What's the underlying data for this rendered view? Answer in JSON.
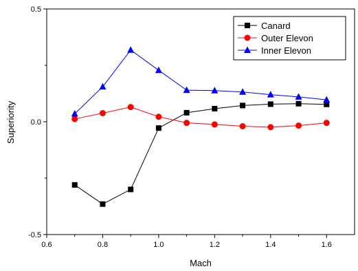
{
  "chart_data": {
    "type": "line",
    "title": "",
    "xlabel": "Mach",
    "ylabel": "Superiority",
    "xlim": [
      0.6,
      1.7
    ],
    "ylim": [
      -0.5,
      0.5
    ],
    "xticks": [
      0.6,
      0.8,
      1.0,
      1.2,
      1.4,
      1.6
    ],
    "xtick_labels": [
      "0.6",
      "0.8",
      "1.0",
      "1.2",
      "1.4",
      "1.6"
    ],
    "yticks": [
      -0.5,
      0.0,
      0.5
    ],
    "ytick_labels": [
      "-0.5",
      "0.0",
      "0.5"
    ],
    "grid": false,
    "legend_position": "top-right",
    "x": [
      0.7,
      0.8,
      0.9,
      1.0,
      1.1,
      1.2,
      1.3,
      1.4,
      1.5,
      1.6
    ],
    "series": [
      {
        "name": "Canard",
        "color": "#000000",
        "marker": "square",
        "values": [
          -0.28,
          -0.365,
          -0.3,
          -0.028,
          0.04,
          0.058,
          0.072,
          0.078,
          0.08,
          0.077
        ]
      },
      {
        "name": "Outer Elevon",
        "color": "#ff0000",
        "marker": "circle",
        "values": [
          0.012,
          0.038,
          0.065,
          0.022,
          -0.005,
          -0.012,
          -0.02,
          -0.024,
          -0.017,
          -0.005
        ]
      },
      {
        "name": "Inner Elevon",
        "color": "#0000ff",
        "marker": "triangle",
        "values": [
          0.035,
          0.155,
          0.318,
          0.228,
          0.14,
          0.138,
          0.132,
          0.12,
          0.11,
          0.097
        ]
      }
    ]
  }
}
